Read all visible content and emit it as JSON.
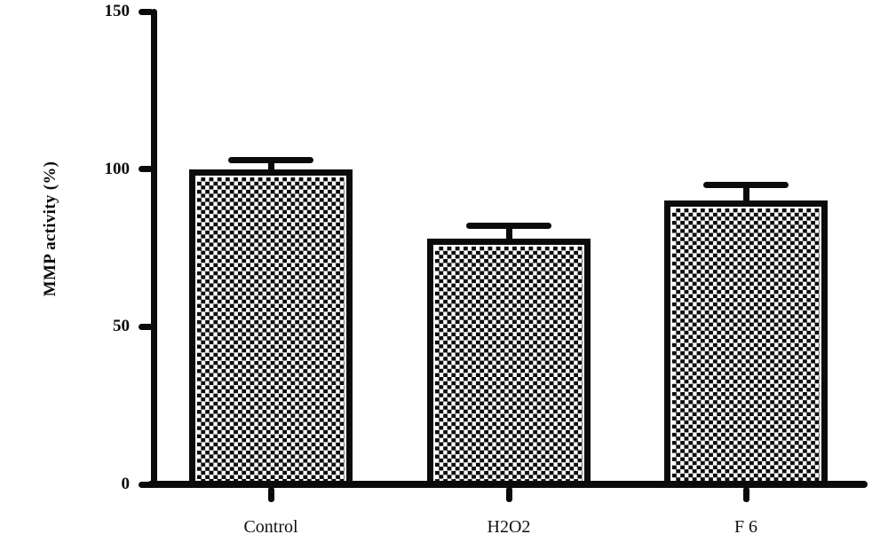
{
  "figure": {
    "background": "#ffffff",
    "ink_color": "#0b0b0b",
    "pattern": "checkerboard"
  },
  "chart_data": {
    "type": "bar",
    "title": "",
    "xlabel": "",
    "ylabel": "MMP activity (%)",
    "categories": [
      "Control",
      "H2O2",
      "F 6"
    ],
    "values": [
      100,
      78,
      90
    ],
    "errors": [
      3,
      4,
      5
    ],
    "ylim": [
      0,
      150
    ],
    "yticks": [
      0,
      50,
      100,
      150
    ],
    "grid": false,
    "legend_position": "none",
    "bar_fill": "black-white checkerboard pattern with thick black border",
    "error_bar_style": "upper cap only, rounded ends"
  }
}
